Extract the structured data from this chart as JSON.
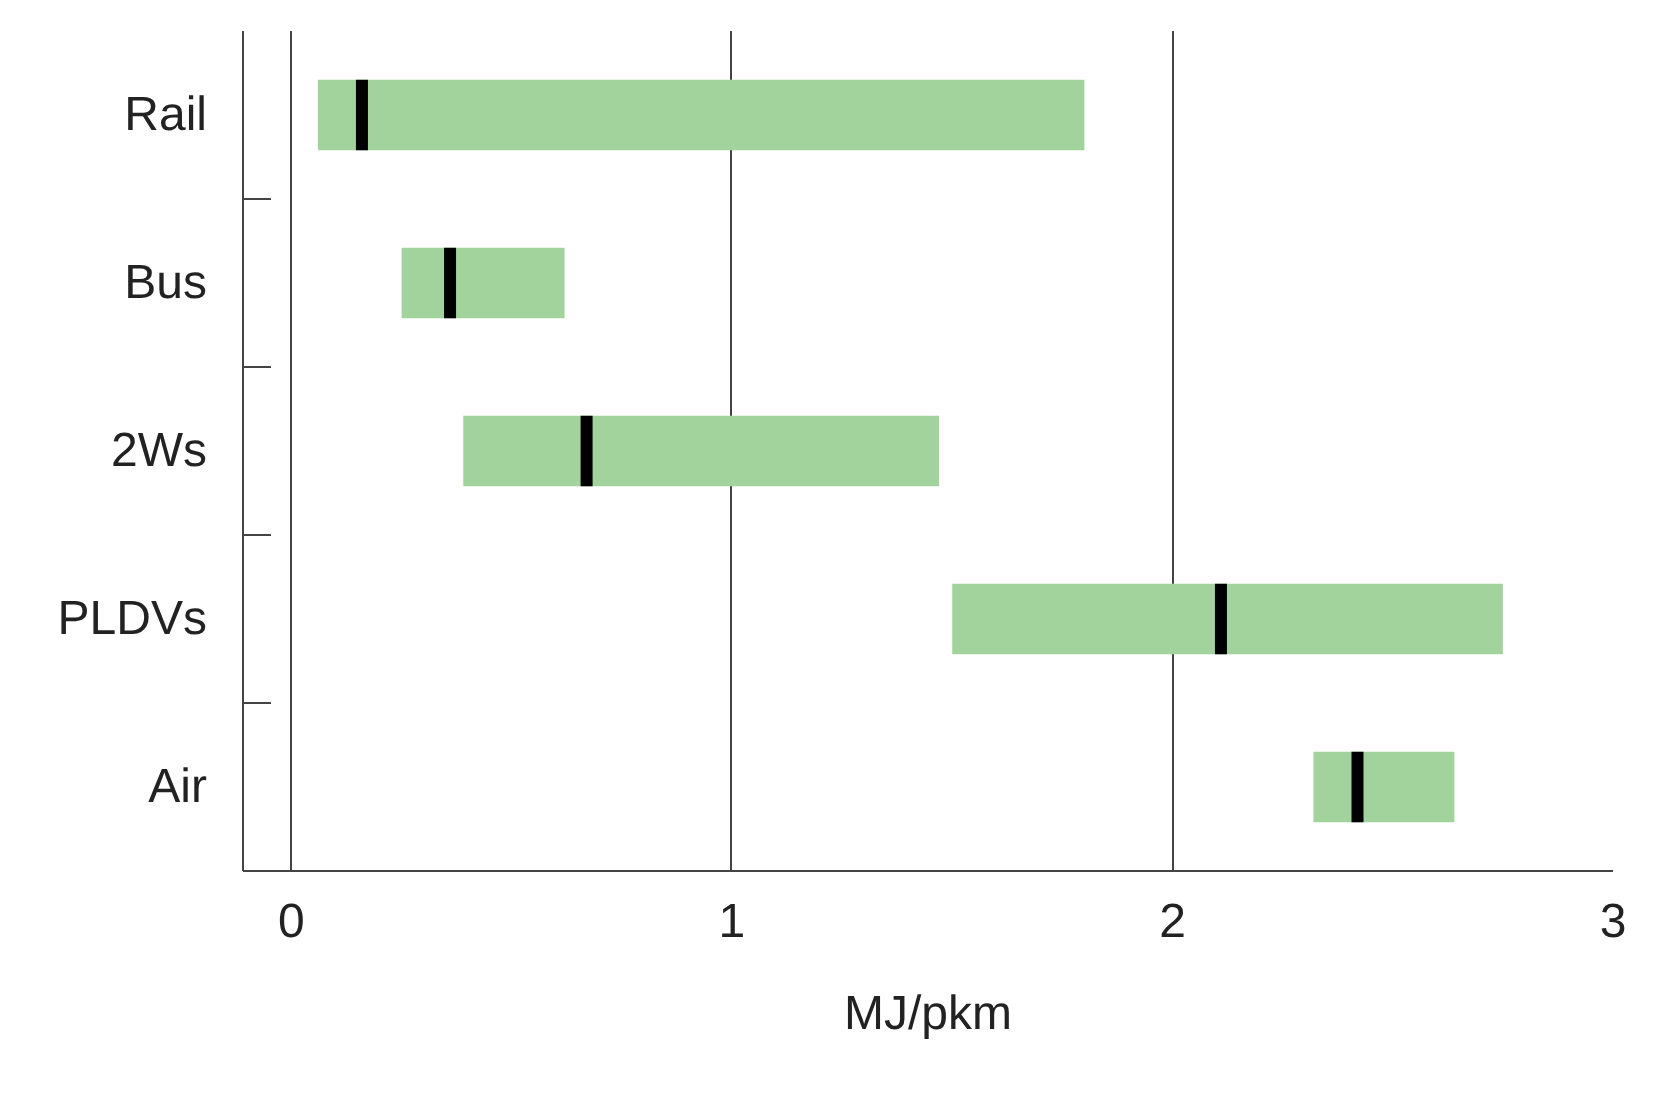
{
  "chart_data": {
    "type": "box",
    "orientation": "horizontal",
    "xlabel": "MJ/pkm",
    "categories": [
      "Rail",
      "Bus",
      "2Ws",
      "PLDVs",
      "Air"
    ],
    "xlim": [
      -0.11,
      3
    ],
    "xticks": [
      0,
      1,
      2,
      3
    ],
    "grid": "x",
    "color": "#a2d39c",
    "boxes": [
      {
        "low": 0.06,
        "q1": 0.06,
        "median": 0.16,
        "q3": 1.8,
        "high": 1.8
      },
      {
        "low": 0.25,
        "q1": 0.25,
        "median": 0.36,
        "q3": 0.62,
        "high": 0.62
      },
      {
        "low": 0.39,
        "q1": 0.39,
        "median": 0.67,
        "q3": 1.47,
        "high": 1.47
      },
      {
        "low": 1.5,
        "q1": 1.5,
        "median": 2.11,
        "q3": 2.75,
        "high": 2.75
      },
      {
        "low": 2.32,
        "q1": 2.32,
        "median": 2.42,
        "q3": 2.64,
        "high": 2.64
      }
    ]
  }
}
